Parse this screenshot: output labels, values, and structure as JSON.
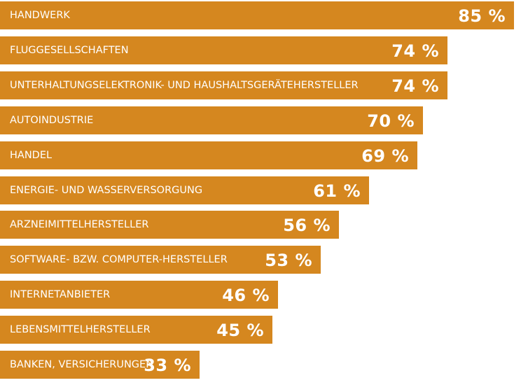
{
  "colors": {
    "bar": "#d5871f",
    "text": "#ffffff"
  },
  "chart_data": {
    "type": "bar",
    "orientation": "horizontal",
    "unit": "%",
    "xlim": [
      0,
      85
    ],
    "grid": false,
    "legend": "none",
    "categories": [
      "HANDWERK",
      "FLUGGESELLSCHAFTEN",
      "UNTERHALTUNGSELEKTRONIK- UND HAUSHALTSGERÄTEHERSTELLER",
      "AUTOINDUSTRIE",
      "HANDEL",
      "ENERGIE- UND WASSERVERSORGUNG",
      "ARZNEIMITTELHERSTELLER",
      "SOFTWARE- BZW. COMPUTER-HERSTELLER",
      "INTERNETANBIETER",
      "LEBENSMITTELHERSTELLER",
      "BANKEN, VERSICHERUNGEN"
    ],
    "values": [
      85,
      74,
      74,
      70,
      69,
      61,
      56,
      53,
      46,
      45,
      33
    ],
    "value_labels": [
      "85 %",
      "74 %",
      "74 %",
      "70 %",
      "69 %",
      "61 %",
      "56 %",
      "53 %",
      "46 %",
      "45 %",
      "33 %"
    ]
  }
}
